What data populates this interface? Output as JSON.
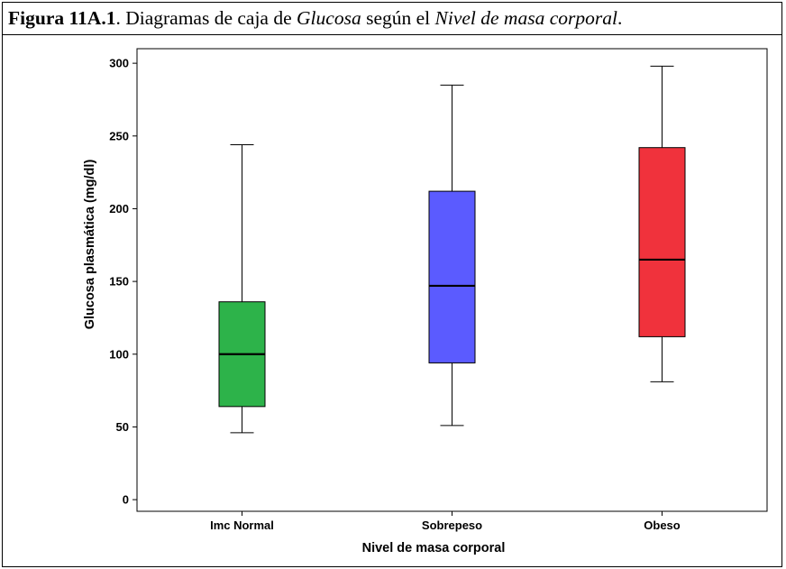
{
  "figure": {
    "label": "Figura 11A.1",
    "text1": ". Diagramas de caja de ",
    "var1": "Glucosa",
    "text2": " según el ",
    "var2": "Nivel de masa corporal",
    "text3": "."
  },
  "chart_data": {
    "type": "boxplot",
    "xlabel": "Nivel de masa corporal",
    "ylabel": "Glucosa plasmática (mg/dl)",
    "ylim": [
      -8,
      310
    ],
    "yticks": [
      0,
      50,
      100,
      150,
      200,
      250,
      300
    ],
    "grid": false,
    "categories": [
      "Imc Normal",
      "Sobrepeso",
      "Obeso"
    ],
    "boxes": [
      {
        "category": "Imc Normal",
        "min": 46,
        "q1": 64,
        "median": 100,
        "q3": 136,
        "max": 244,
        "color": "#2db34a"
      },
      {
        "category": "Sobrepeso",
        "min": 51,
        "q1": 94,
        "median": 147,
        "q3": 212,
        "max": 285,
        "color": "#5b5bff"
      },
      {
        "category": "Obeso",
        "min": 81,
        "q1": 112,
        "median": 165,
        "q3": 242,
        "max": 298,
        "color": "#f0323c"
      }
    ]
  }
}
